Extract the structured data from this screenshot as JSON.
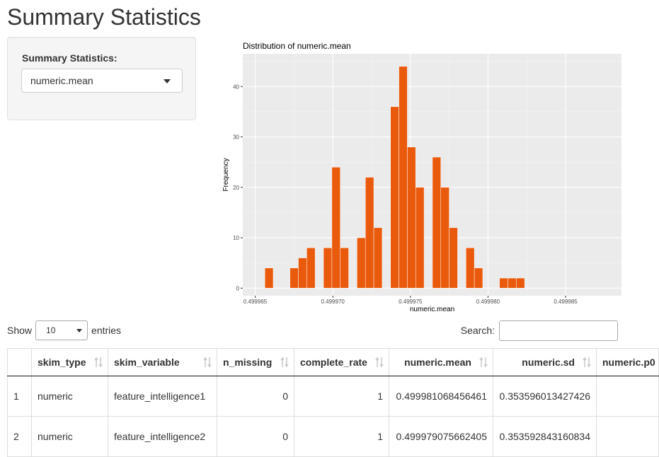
{
  "page": {
    "title": "Summary Statistics"
  },
  "sidebar": {
    "select_label": "Summary Statistics:",
    "select_value": "numeric.mean"
  },
  "chart_data": {
    "type": "bar",
    "title": "Distribution of numeric.mean",
    "xlabel": "numeric.mean",
    "ylabel": "Frequency",
    "xlim": [
      0.4999642,
      0.4999886
    ],
    "ylim": [
      -1.5,
      46.5
    ],
    "bin_width": 5.4e-07,
    "first_bin_start": 0.49996562,
    "values": [
      4,
      0,
      0,
      4,
      6,
      8,
      0,
      8,
      24,
      8,
      0,
      10,
      22,
      12,
      0,
      36,
      44,
      28,
      20,
      0,
      26,
      20,
      12,
      0,
      8,
      4,
      0,
      0,
      2,
      2,
      2
    ],
    "x_ticks": [
      "0.499965",
      "0.499970",
      "0.499975",
      "0.499980",
      "0.499985"
    ],
    "x_tick_values": [
      0.499965,
      0.49997,
      0.499975,
      0.49998,
      0.499985
    ],
    "y_ticks": [
      "0",
      "10",
      "20",
      "30",
      "40"
    ],
    "y_tick_values": [
      0,
      10,
      20,
      30,
      40
    ],
    "bar_color": "#EA5A0C",
    "panel_background": "#EBEBEB",
    "grid": true
  },
  "datatable": {
    "show_label": "Show",
    "entries_label": "entries",
    "page_length": "10",
    "search_label": "Search:",
    "search_value": "",
    "columns": [
      "",
      "skim_type",
      "skim_variable",
      "n_missing",
      "complete_rate",
      "numeric.mean",
      "numeric.sd",
      "numeric.p0"
    ],
    "rows": [
      [
        "1",
        "numeric",
        "feature_intelligence1",
        "0",
        "1",
        "0.499981068456461",
        "0.353596013427426",
        ""
      ],
      [
        "2",
        "numeric",
        "feature_intelligence2",
        "0",
        "1",
        "0.499979075662405",
        "0.353592843160834",
        ""
      ]
    ]
  }
}
